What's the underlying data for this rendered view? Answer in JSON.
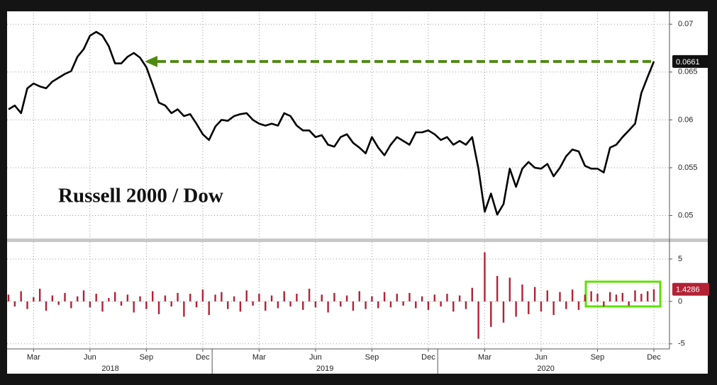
{
  "chart_data": [
    {
      "type": "line",
      "title": "Russell 2000 / Dow",
      "color": "#000000",
      "values": [
        0.0611,
        0.0615,
        0.0607,
        0.0633,
        0.0638,
        0.0635,
        0.0633,
        0.064,
        0.0644,
        0.0648,
        0.0651,
        0.0666,
        0.0674,
        0.0688,
        0.0692,
        0.0688,
        0.0677,
        0.0659,
        0.0659,
        0.0666,
        0.067,
        0.0665,
        0.0655,
        0.0637,
        0.0618,
        0.0615,
        0.0607,
        0.0611,
        0.0604,
        0.0606,
        0.0596,
        0.0585,
        0.0579,
        0.0593,
        0.06,
        0.0599,
        0.0604,
        0.0606,
        0.0607,
        0.06,
        0.0596,
        0.0594,
        0.0596,
        0.0594,
        0.0607,
        0.0604,
        0.0594,
        0.0589,
        0.0589,
        0.0582,
        0.0584,
        0.0574,
        0.0572,
        0.0582,
        0.0585,
        0.0576,
        0.0571,
        0.0565,
        0.0582,
        0.0571,
        0.0563,
        0.0574,
        0.0582,
        0.0578,
        0.0574,
        0.0587,
        0.0587,
        0.0589,
        0.0585,
        0.0579,
        0.0582,
        0.0574,
        0.0578,
        0.0574,
        0.0582,
        0.0549,
        0.0504,
        0.0523,
        0.0501,
        0.0512,
        0.0549,
        0.053,
        0.0549,
        0.0556,
        0.055,
        0.0549,
        0.0554,
        0.0541,
        0.055,
        0.0562,
        0.0569,
        0.0567,
        0.0552,
        0.0549,
        0.0549,
        0.0545,
        0.0571,
        0.0574,
        0.0582,
        0.0589,
        0.0596,
        0.0628,
        0.0645,
        0.0661
      ],
      "ylim": [
        0.0476,
        0.0712
      ],
      "yticks": [
        0.05,
        0.055,
        0.06,
        0.065,
        0.07
      ],
      "grid": true
    },
    {
      "type": "bar",
      "color": "#b22234",
      "categories": [
        null,
        null,
        null,
        null,
        "Mar",
        null,
        null,
        null,
        null,
        null,
        null,
        null,
        null,
        "Jun",
        null,
        null,
        null,
        null,
        null,
        null,
        null,
        null,
        "Sep",
        null,
        null,
        null,
        null,
        null,
        null,
        null,
        null,
        "Dec",
        null,
        null,
        null,
        null,
        null,
        null,
        null,
        null,
        "Mar",
        null,
        null,
        null,
        null,
        null,
        null,
        null,
        null,
        "Jun",
        null,
        null,
        null,
        null,
        null,
        null,
        null,
        null,
        "Sep",
        null,
        null,
        null,
        null,
        null,
        null,
        null,
        null,
        "Dec",
        null,
        null,
        null,
        null,
        null,
        null,
        null,
        null,
        "Mar",
        null,
        null,
        null,
        null,
        null,
        null,
        null,
        null,
        "Jun",
        null,
        null,
        null,
        null,
        null,
        null,
        null,
        null,
        "Sep",
        null,
        null,
        null,
        null,
        null,
        null,
        null,
        null,
        "Dec"
      ],
      "x_groups": [
        {
          "label": "2018",
          "start": 0,
          "end": 32
        },
        {
          "label": "2019",
          "start": 33,
          "end": 68
        },
        {
          "label": "2020",
          "start": 69,
          "end": 103
        }
      ],
      "values": [
        0.8,
        -0.6,
        1.2,
        -0.9,
        0.5,
        1.5,
        -1.1,
        0.7,
        -0.4,
        1.0,
        -0.8,
        0.6,
        1.3,
        -0.7,
        0.9,
        -1.2,
        0.4,
        1.1,
        -0.5,
        0.8,
        -1.3,
        0.6,
        -0.9,
        1.2,
        -1.5,
        0.7,
        -0.6,
        1.0,
        -1.8,
        0.9,
        -0.7,
        1.4,
        -1.6,
        0.8,
        1.1,
        -0.9,
        0.6,
        -1.2,
        1.3,
        -0.5,
        0.9,
        -1.1,
        0.7,
        -0.8,
        1.2,
        -0.6,
        0.9,
        -1.0,
        1.5,
        -0.7,
        0.8,
        -1.3,
        1.0,
        -0.6,
        0.7,
        -1.1,
        1.2,
        -0.9,
        0.6,
        -0.8,
        1.1,
        -0.7,
        0.9,
        -0.5,
        1.0,
        -0.8,
        0.6,
        -1.0,
        0.8,
        -0.6,
        0.9,
        -1.2,
        0.7,
        -0.9,
        1.6,
        -4.4,
        5.8,
        -3.0,
        3.0,
        -2.5,
        2.8,
        -1.8,
        2.0,
        -1.5,
        1.7,
        -1.2,
        1.3,
        -1.6,
        1.1,
        -0.9,
        1.4,
        -1.0,
        0.8,
        1.2,
        0.9,
        -0.6,
        1.1,
        0.8,
        1.0,
        -0.5,
        1.3,
        0.9,
        1.2,
        1.4286
      ],
      "ylim": [
        -5.6,
        7
      ],
      "yticks": [
        -5,
        0,
        5
      ],
      "grid": true
    }
  ]
}
